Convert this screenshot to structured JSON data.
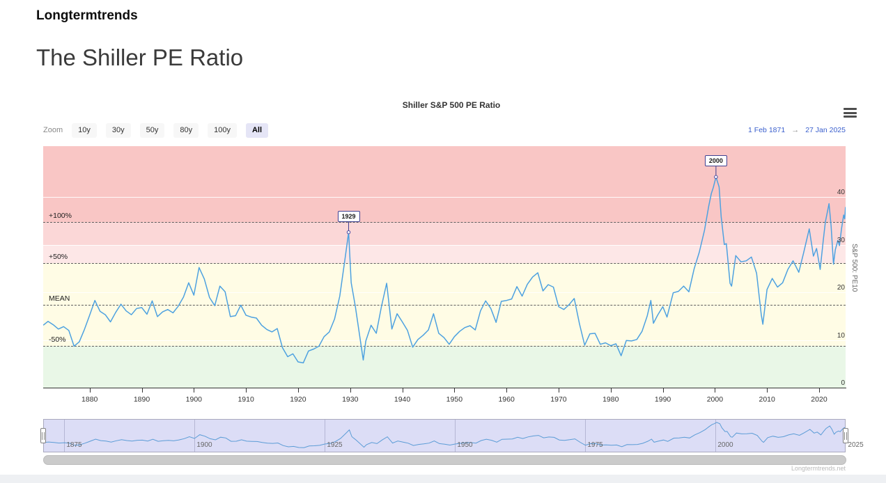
{
  "page": {
    "brand": "Longtermtrends",
    "title": "The Shiller PE Ratio",
    "watermark": "Longtermtrends.net"
  },
  "toolbar": {
    "zoom_label": "Zoom",
    "buttons": [
      {
        "label": "10y",
        "selected": false
      },
      {
        "label": "30y",
        "selected": false
      },
      {
        "label": "50y",
        "selected": false
      },
      {
        "label": "80y",
        "selected": false
      },
      {
        "label": "100y",
        "selected": false
      },
      {
        "label": "All",
        "selected": true
      }
    ],
    "range_from": "1 Feb 1871",
    "range_arrow": "→",
    "range_to": "27 Jan 2025",
    "menu_icon": "hamburger-icon"
  },
  "chart_data": {
    "type": "line",
    "title": "Shiller S&P 500 PE Ratio",
    "x_axis": {
      "min": 1871.08,
      "max": 2025.08,
      "ticks": [
        1880,
        1890,
        1900,
        1910,
        1920,
        1930,
        1940,
        1950,
        1960,
        1970,
        1980,
        1990,
        2000,
        2010,
        2020
      ]
    },
    "y_axis": {
      "title": "S&P 500: PE10",
      "min": 0,
      "max": 50.66,
      "ticks": [
        0,
        10,
        20,
        30,
        40
      ],
      "position": "right",
      "grid_color": "#ffffff"
    },
    "plot_bands": [
      {
        "from": 34.8,
        "to": 50.66,
        "color": "#f9c6c5",
        "meaning": "above +100% of mean"
      },
      {
        "from": 30.0,
        "to": 34.8,
        "color": "#fbd7d7",
        "meaning": "upper pink"
      },
      {
        "from": 26.1,
        "to": 30.0,
        "color": "#fde7e7",
        "meaning": "lower pink"
      },
      {
        "from": 8.7,
        "to": 26.1,
        "color": "#fffce5",
        "meaning": "normal zone"
      },
      {
        "from": 0,
        "to": 8.7,
        "color": "#e9f7e7",
        "meaning": "below -50% of mean"
      }
    ],
    "threshold_lines": [
      {
        "value": 34.8,
        "label": "+100%"
      },
      {
        "value": 26.1,
        "label": "+50%"
      },
      {
        "value": 17.4,
        "label": "MEAN"
      },
      {
        "value": 8.7,
        "label": "-50%"
      }
    ],
    "annotations": [
      {
        "label": "1929",
        "x": 1929.7,
        "y": 32.6
      },
      {
        "label": "2000",
        "x": 2000.2,
        "y": 44.2
      }
    ],
    "series": [
      {
        "name": "Shiller S&P 500 PE Ratio",
        "color": "#4da1e0",
        "points": [
          [
            1871.1,
            13.1
          ],
          [
            1872,
            13.9
          ],
          [
            1873,
            13.2
          ],
          [
            1874,
            12.3
          ],
          [
            1875,
            12.8
          ],
          [
            1876,
            12.0
          ],
          [
            1877,
            8.7
          ],
          [
            1878,
            9.6
          ],
          [
            1879,
            12.2
          ],
          [
            1880,
            15.2
          ],
          [
            1881,
            18.3
          ],
          [
            1882,
            16.0
          ],
          [
            1883,
            15.3
          ],
          [
            1884,
            13.8
          ],
          [
            1885,
            15.8
          ],
          [
            1886,
            17.5
          ],
          [
            1887,
            16.1
          ],
          [
            1888,
            15.3
          ],
          [
            1889,
            16.6
          ],
          [
            1890,
            16.8
          ],
          [
            1891,
            15.4
          ],
          [
            1892,
            18.2
          ],
          [
            1893,
            14.9
          ],
          [
            1894,
            15.9
          ],
          [
            1895,
            16.4
          ],
          [
            1896,
            15.7
          ],
          [
            1897,
            17.1
          ],
          [
            1898,
            19.0
          ],
          [
            1899,
            22.0
          ],
          [
            1900,
            19.4
          ],
          [
            1901,
            25.2
          ],
          [
            1902,
            22.8
          ],
          [
            1903,
            18.9
          ],
          [
            1904,
            17.2
          ],
          [
            1905,
            21.3
          ],
          [
            1906,
            20.1
          ],
          [
            1907,
            14.9
          ],
          [
            1908,
            15.1
          ],
          [
            1909,
            17.3
          ],
          [
            1910,
            15.2
          ],
          [
            1911,
            14.8
          ],
          [
            1912,
            14.6
          ],
          [
            1913,
            13.1
          ],
          [
            1914,
            12.2
          ],
          [
            1915,
            11.7
          ],
          [
            1916,
            12.4
          ],
          [
            1917,
            8.4
          ],
          [
            1918,
            6.5
          ],
          [
            1919,
            7.1
          ],
          [
            1920,
            5.4
          ],
          [
            1921,
            5.2
          ],
          [
            1922,
            7.7
          ],
          [
            1923,
            8.1
          ],
          [
            1924,
            8.7
          ],
          [
            1925,
            10.7
          ],
          [
            1926,
            11.7
          ],
          [
            1927,
            14.4
          ],
          [
            1928,
            19.2
          ],
          [
            1929,
            27.0
          ],
          [
            1929.7,
            32.6
          ],
          [
            1930.2,
            22.0
          ],
          [
            1931,
            17.0
          ],
          [
            1932.5,
            5.8
          ],
          [
            1933,
            9.8
          ],
          [
            1934,
            13.1
          ],
          [
            1935,
            11.4
          ],
          [
            1936,
            17.0
          ],
          [
            1937,
            21.9
          ],
          [
            1938,
            12.3
          ],
          [
            1939,
            15.5
          ],
          [
            1940,
            13.8
          ],
          [
            1941,
            12.0
          ],
          [
            1942,
            8.5
          ],
          [
            1943,
            10.1
          ],
          [
            1944,
            11.0
          ],
          [
            1945,
            12.1
          ],
          [
            1946,
            15.5
          ],
          [
            1947,
            11.4
          ],
          [
            1948,
            10.5
          ],
          [
            1949,
            9.1
          ],
          [
            1950,
            10.7
          ],
          [
            1951,
            11.8
          ],
          [
            1952,
            12.6
          ],
          [
            1953,
            13.0
          ],
          [
            1954,
            12.1
          ],
          [
            1955,
            16.1
          ],
          [
            1956,
            18.2
          ],
          [
            1957,
            16.6
          ],
          [
            1958,
            13.7
          ],
          [
            1959,
            18.1
          ],
          [
            1960,
            18.3
          ],
          [
            1961,
            18.6
          ],
          [
            1962,
            21.2
          ],
          [
            1963,
            19.2
          ],
          [
            1964,
            21.7
          ],
          [
            1965,
            23.2
          ],
          [
            1966,
            24.1
          ],
          [
            1967,
            20.3
          ],
          [
            1968,
            21.6
          ],
          [
            1969,
            21.1
          ],
          [
            1970,
            17.0
          ],
          [
            1971,
            16.4
          ],
          [
            1972,
            17.4
          ],
          [
            1973,
            18.7
          ],
          [
            1974,
            13.4
          ],
          [
            1975,
            8.9
          ],
          [
            1976,
            11.3
          ],
          [
            1977,
            11.4
          ],
          [
            1978,
            9.1
          ],
          [
            1979,
            9.4
          ],
          [
            1980,
            8.8
          ],
          [
            1981,
            9.2
          ],
          [
            1982,
            6.7
          ],
          [
            1983,
            9.9
          ],
          [
            1984,
            9.8
          ],
          [
            1985,
            10.1
          ],
          [
            1986,
            11.8
          ],
          [
            1987,
            15.0
          ],
          [
            1987.7,
            18.3
          ],
          [
            1988.2,
            13.5
          ],
          [
            1989,
            15.2
          ],
          [
            1990,
            17.0
          ],
          [
            1990.8,
            14.8
          ],
          [
            1992,
            19.9
          ],
          [
            1993,
            20.2
          ],
          [
            1994,
            21.3
          ],
          [
            1995,
            20.1
          ],
          [
            1996,
            24.9
          ],
          [
            1997,
            28.4
          ],
          [
            1998,
            33.0
          ],
          [
            1998.8,
            38.0
          ],
          [
            1999.3,
            40.7
          ],
          [
            1999.7,
            42.0
          ],
          [
            2000.2,
            44.2
          ],
          [
            2000.8,
            42.1
          ],
          [
            2001.2,
            35.8
          ],
          [
            2001.8,
            30.0
          ],
          [
            2002.2,
            30.2
          ],
          [
            2002.9,
            21.9
          ],
          [
            2003.2,
            21.3
          ],
          [
            2004,
            27.7
          ],
          [
            2005,
            26.4
          ],
          [
            2006,
            26.6
          ],
          [
            2007,
            27.4
          ],
          [
            2008,
            24.0
          ],
          [
            2008.9,
            15.2
          ],
          [
            2009.2,
            13.3
          ],
          [
            2010,
            20.6
          ],
          [
            2011,
            22.9
          ],
          [
            2012,
            21.1
          ],
          [
            2013,
            22.0
          ],
          [
            2014,
            24.8
          ],
          [
            2015,
            26.6
          ],
          [
            2016.1,
            24.2
          ],
          [
            2017,
            28.2
          ],
          [
            2018.1,
            33.3
          ],
          [
            2018.9,
            27.6
          ],
          [
            2019.5,
            29.2
          ],
          [
            2020.2,
            24.8
          ],
          [
            2020.8,
            31.0
          ],
          [
            2021.2,
            34.8
          ],
          [
            2021.9,
            38.6
          ],
          [
            2022.3,
            33.9
          ],
          [
            2022.75,
            25.9
          ],
          [
            2023.1,
            28.9
          ],
          [
            2023.6,
            30.9
          ],
          [
            2023.9,
            29.8
          ],
          [
            2024.3,
            33.4
          ],
          [
            2024.7,
            36.2
          ],
          [
            2024.9,
            35.4
          ],
          [
            2025.07,
            37.9
          ]
        ]
      }
    ],
    "navigator": {
      "ticks": [
        1875,
        1900,
        1925,
        1950,
        1975,
        2000,
        2025
      ],
      "background": "#dcddf6",
      "line_color": "#5b9cd6"
    },
    "legend_position": "none",
    "grid": true
  }
}
